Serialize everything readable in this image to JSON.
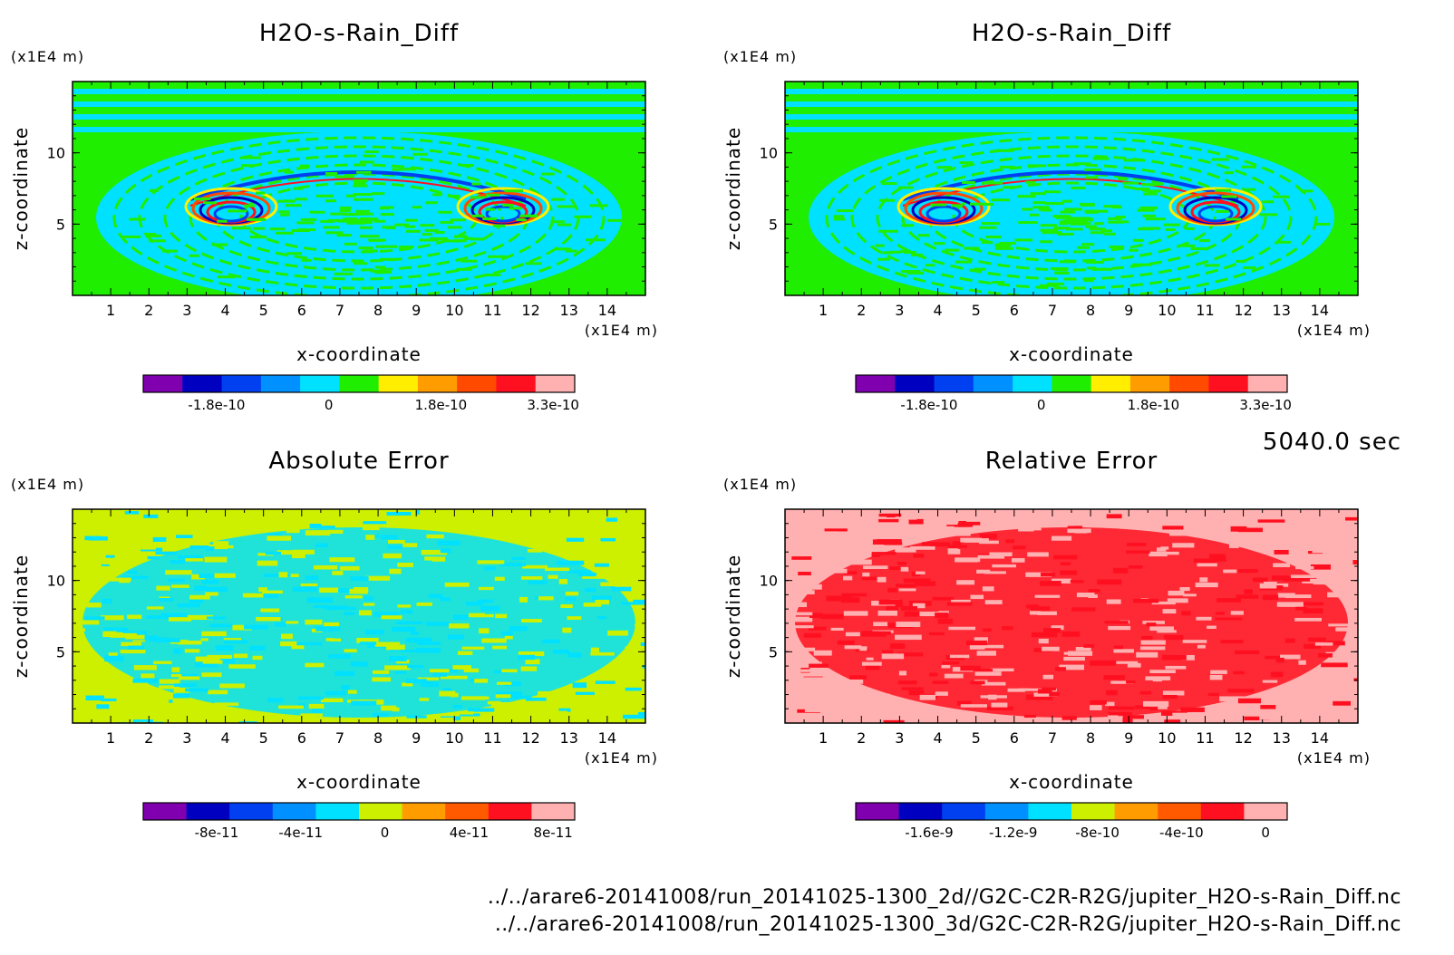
{
  "chart_data": [
    {
      "type": "heatmap",
      "title": "H2O-s-Rain_Diff",
      "xlabel": "x-coordinate",
      "ylabel": "z-coordinate",
      "x_unit": "(x1E4 m)",
      "y_unit": "(x1E4 m)",
      "xlim": [
        0,
        15
      ],
      "ylim": [
        0,
        15
      ],
      "x_ticks": [
        "1",
        "2",
        "3",
        "4",
        "5",
        "6",
        "7",
        "8",
        "9",
        "10",
        "11",
        "12",
        "13",
        "14"
      ],
      "y_ticks": [
        "5",
        "10"
      ],
      "colorbar": {
        "colors": [
          "#8000b0",
          "#0000c0",
          "#0040f0",
          "#0090ff",
          "#00e0ff",
          "#20ee00",
          "#ffee00",
          "#ff9c00",
          "#ff4a00",
          "#ff1020",
          "#ffb0b0"
        ],
        "tick_labels": [
          "-1.8e-10",
          "0",
          "1.8e-10",
          "3.3e-10"
        ]
      },
      "pattern": "vortex",
      "background": "#20ee00",
      "foreground": "#00e0ff"
    },
    {
      "type": "heatmap",
      "title": "H2O-s-Rain_Diff",
      "xlabel": "x-coordinate",
      "ylabel": "z-coordinate",
      "x_unit": "(x1E4 m)",
      "y_unit": "(x1E4 m)",
      "xlim": [
        0,
        15
      ],
      "ylim": [
        0,
        15
      ],
      "x_ticks": [
        "1",
        "2",
        "3",
        "4",
        "5",
        "6",
        "7",
        "8",
        "9",
        "10",
        "11",
        "12",
        "13",
        "14"
      ],
      "y_ticks": [
        "5",
        "10"
      ],
      "colorbar": {
        "colors": [
          "#8000b0",
          "#0000c0",
          "#0040f0",
          "#0090ff",
          "#00e0ff",
          "#20ee00",
          "#ffee00",
          "#ff9c00",
          "#ff4a00",
          "#ff1020",
          "#ffb0b0"
        ],
        "tick_labels": [
          "-1.8e-10",
          "0",
          "1.8e-10",
          "3.3e-10"
        ]
      },
      "pattern": "vortex",
      "background": "#20ee00",
      "foreground": "#00e0ff"
    },
    {
      "type": "heatmap",
      "title": "Absolute Error",
      "xlabel": "x-coordinate",
      "ylabel": "z-coordinate",
      "x_unit": "(x1E4 m)",
      "y_unit": "(x1E4 m)",
      "xlim": [
        0,
        15
      ],
      "ylim": [
        0,
        15
      ],
      "x_ticks": [
        "1",
        "2",
        "3",
        "4",
        "5",
        "6",
        "7",
        "8",
        "9",
        "10",
        "11",
        "12",
        "13",
        "14"
      ],
      "y_ticks": [
        "5",
        "10"
      ],
      "colorbar": {
        "colors": [
          "#8000b0",
          "#0000c0",
          "#0040f0",
          "#0090ff",
          "#00e0ff",
          "#ccf000",
          "#ff9c00",
          "#ff5a00",
          "#ff1020",
          "#ffb0b0"
        ],
        "tick_labels": [
          "-8e-11",
          "-4e-11",
          "0",
          "4e-11",
          "8e-11"
        ]
      },
      "pattern": "noise",
      "background": "#ccf000",
      "foreground": "#00e0ff"
    },
    {
      "type": "heatmap",
      "title": "Relative Error",
      "xlabel": "x-coordinate",
      "ylabel": "z-coordinate",
      "x_unit": "(x1E4 m)",
      "y_unit": "(x1E4 m)",
      "xlim": [
        0,
        15
      ],
      "ylim": [
        0,
        15
      ],
      "x_ticks": [
        "1",
        "2",
        "3",
        "4",
        "5",
        "6",
        "7",
        "8",
        "9",
        "10",
        "11",
        "12",
        "13",
        "14"
      ],
      "y_ticks": [
        "5",
        "10"
      ],
      "colorbar": {
        "colors": [
          "#8000b0",
          "#0000c0",
          "#0040f0",
          "#0090ff",
          "#00e0ff",
          "#ccf000",
          "#ff9c00",
          "#ff5a00",
          "#ff1020",
          "#ffb0b0"
        ],
        "tick_labels": [
          "-1.6e-9",
          "-1.2e-9",
          "-8e-10",
          "-4e-10",
          "0"
        ]
      },
      "pattern": "noise",
      "background": "#ffb0b0",
      "foreground": "#ff1020"
    }
  ],
  "time_label": "5040.0 sec",
  "footer": [
    "../../arare6-20141008/run_20141025-1300_2d//G2C-C2R-R2G/jupiter_H2O-s-Rain_Diff.nc",
    "../../arare6-20141008/run_20141025-1300_3d/G2C-C2R-R2G/jupiter_H2O-s-Rain_Diff.nc"
  ]
}
